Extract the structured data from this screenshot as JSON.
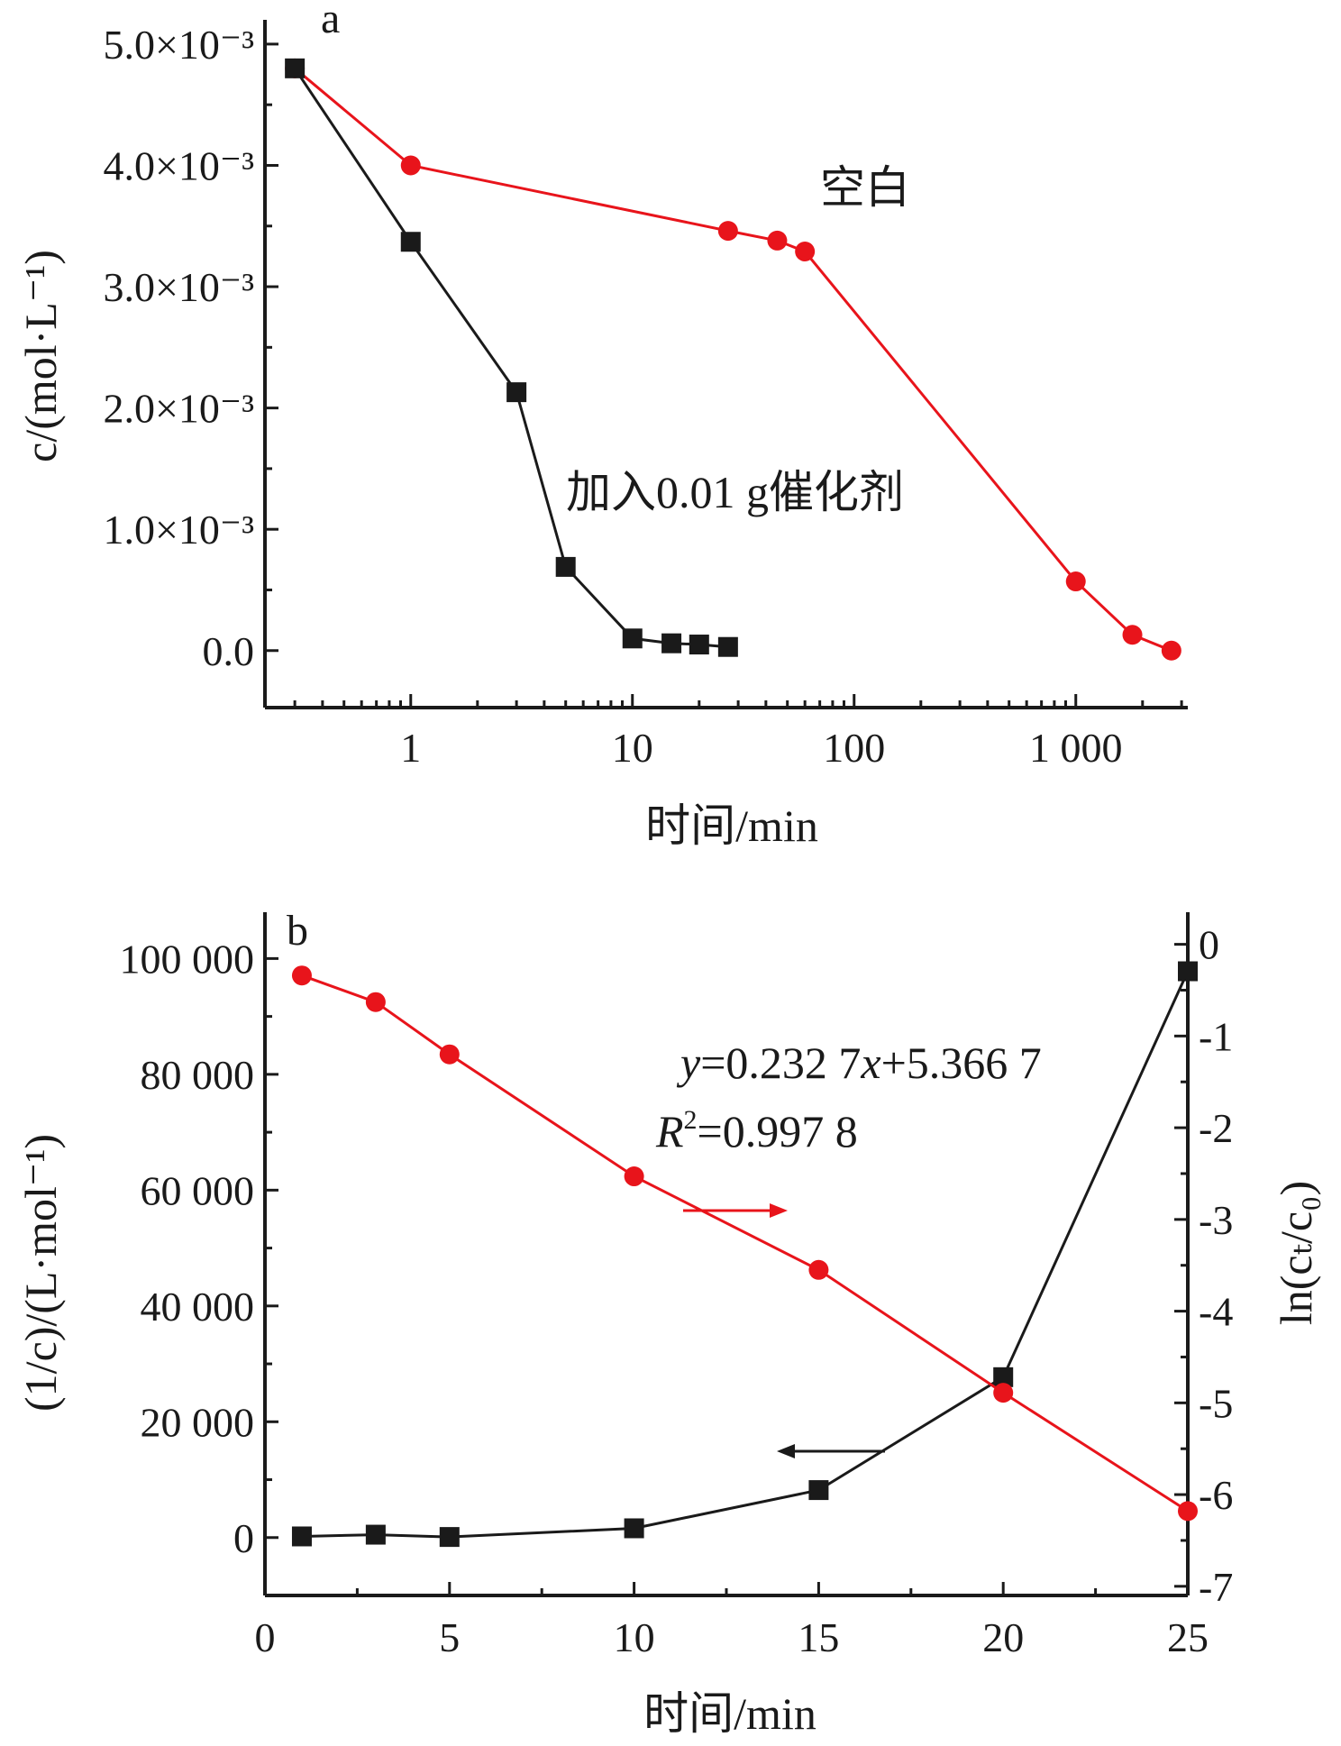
{
  "chart_data": [
    {
      "panel": "a",
      "type": "line",
      "xscale": "log",
      "xlabel": "时间/min",
      "ylabel": "c/(mol·L⁻¹)",
      "xticks": [
        1,
        10,
        100,
        1000
      ],
      "xtick_labels": [
        "1",
        "10",
        "100",
        "1 000"
      ],
      "yticks": [
        0,
        0.001,
        0.002,
        0.003,
        0.004,
        0.005
      ],
      "ytick_labels": [
        "0.0",
        "1.0×10⁻³",
        "2.0×10⁻³",
        "3.0×10⁻³",
        "4.0×10⁻³",
        "5.0×10⁻³"
      ],
      "xlim": [
        0.22,
        3200
      ],
      "ylim": [
        -0.00047,
        0.0052
      ],
      "series": [
        {
          "name": "空白",
          "color": "#e8141b",
          "marker": "circle",
          "x": [
            0.3,
            1,
            27,
            45,
            60,
            1000,
            1800,
            2700
          ],
          "y": [
            0.0048,
            0.004,
            0.00346,
            0.00338,
            0.00329,
            0.00057,
            0.00013,
            0.0
          ]
        },
        {
          "name": "加入0.01 g催化剂",
          "color": "#1a1a1a",
          "marker": "square",
          "x": [
            0.3,
            1,
            3,
            5,
            10,
            15,
            20,
            27
          ],
          "y": [
            0.0048,
            0.00337,
            0.00213,
            0.00069,
            0.0001,
            6e-05,
            5e-05,
            3e-05
          ]
        }
      ]
    },
    {
      "panel": "b",
      "type": "line",
      "xlabel": "时间/min",
      "ylabel_left": "(1/c)/(L·mol⁻¹)",
      "ylabel_right": "ln(cₜ/c₀)",
      "xticks": [
        0,
        5,
        10,
        15,
        20,
        25
      ],
      "xtick_labels": [
        "0",
        "5",
        "10",
        "15",
        "20",
        "25"
      ],
      "yticks_left": [
        0,
        20000,
        40000,
        60000,
        80000,
        100000
      ],
      "ytick_labels_left": [
        "0",
        "20 000",
        "40 000",
        "60 000",
        "80 000",
        "100 000"
      ],
      "yticks_right": [
        0,
        -1,
        -2,
        -3,
        -4,
        -5,
        -6,
        -7
      ],
      "ytick_labels_right": [
        "0",
        "-1",
        "-2",
        "-3",
        "-4",
        "-5",
        "-6",
        "-7"
      ],
      "xlim": [
        0,
        25
      ],
      "ylim_left": [
        -10000,
        108000
      ],
      "ylim_right": [
        -7.1,
        0.35
      ],
      "series": [
        {
          "axis": "left",
          "color": "#1a1a1a",
          "marker": "square",
          "x": [
            1,
            3,
            5,
            10,
            15,
            20,
            25
          ],
          "y": [
            200,
            500,
            100,
            1600,
            8200,
            27700,
            97800
          ]
        },
        {
          "axis": "right",
          "color": "#e8141b",
          "marker": "circle",
          "x": [
            1,
            3,
            5,
            10,
            15,
            20,
            25
          ],
          "y": [
            -0.34,
            -0.63,
            -1.2,
            -2.53,
            -3.55,
            -4.89,
            -6.18
          ]
        }
      ],
      "annotation_line1": [
        "y",
        "=0.232 7",
        "x",
        "+5.366 7"
      ],
      "annotation_line2": [
        "R",
        "2",
        "=0.997 8"
      ]
    }
  ]
}
